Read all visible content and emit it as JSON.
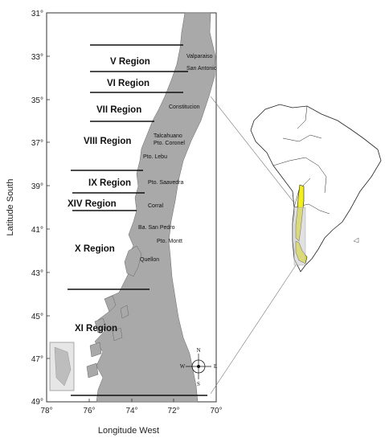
{
  "axes": {
    "x_label": "Longitude West",
    "y_label": "Latitude South",
    "x_ticks": [
      "78°",
      "76°",
      "74°",
      "72°",
      "70°"
    ],
    "y_ticks": [
      "31°",
      "33°",
      "35°",
      "37°",
      "39°",
      "41°",
      "43°",
      "45°",
      "47°",
      "49°"
    ],
    "x_range": [
      78,
      70
    ],
    "y_range": [
      31,
      49
    ]
  },
  "regions": [
    "V Region",
    "VI Region",
    "VII Region",
    "VIII Region",
    "IX Region",
    "XIV Region",
    "X Region",
    "XI Region"
  ],
  "places": [
    "Valparaiso",
    "San Antonio",
    "Constitucion",
    "Talcahuano",
    "Pto. Coronel",
    "Pto. Lebu",
    "Pto. Saavedra",
    "Corral",
    "Ba. San Pedro",
    "Pto. Montt",
    "Quellon"
  ],
  "compass": {
    "n": "N",
    "s": "S",
    "e": "E",
    "w": "W"
  },
  "colors": {
    "land": "#a9a9a9",
    "highlight": "#f2ef1c",
    "ocean": "#ffffff",
    "outline": "#222222"
  }
}
